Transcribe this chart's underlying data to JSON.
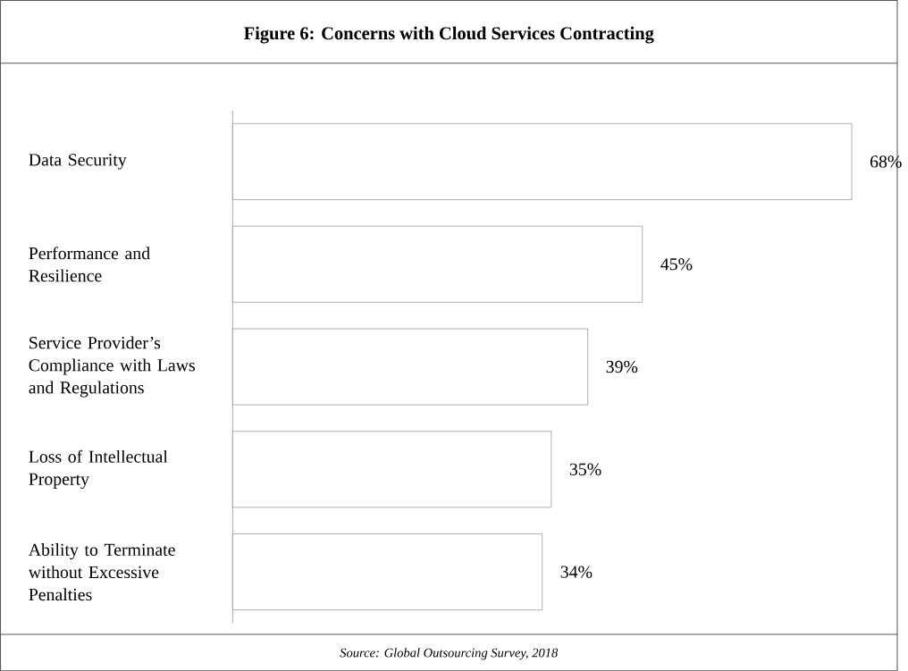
{
  "chart_data": {
    "type": "bar",
    "orientation": "horizontal",
    "title": "Figure 6: Concerns with Cloud Services Contracting",
    "categories": [
      "Data Security",
      "Performance and Resilience",
      "Service Provider’s Compliance with Laws and Regulations",
      "Loss of Intellectual Property",
      "Ability to Terminate without Excessive Penalties"
    ],
    "values": [
      68,
      45,
      39,
      35,
      34
    ],
    "value_labels": [
      "68%",
      "45%",
      "39%",
      "35%",
      "34%"
    ],
    "color": "#ffffff",
    "tick_labels": "y",
    "annotations": [
      "Source: Global Outsourcing Survey, 2018"
    ]
  }
}
